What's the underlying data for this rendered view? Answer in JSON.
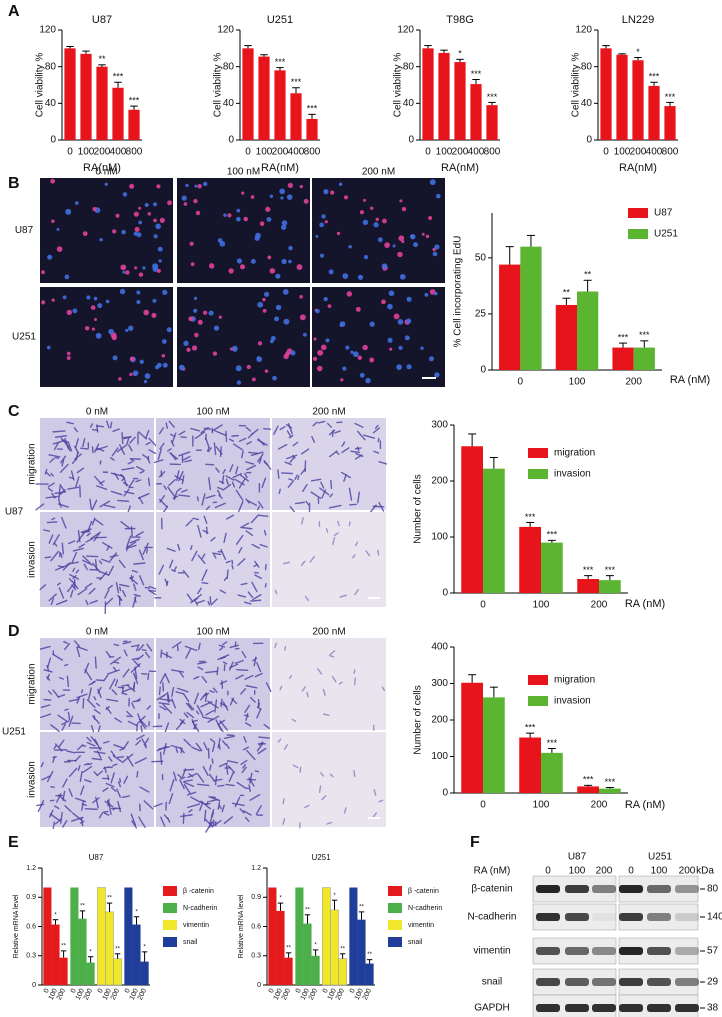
{
  "chart_data": [
    {
      "type": "bar",
      "title": "U87",
      "categories": [
        "0",
        "100",
        "200",
        "400",
        "800"
      ],
      "values": [
        100,
        94,
        80,
        57,
        33
      ],
      "errors": [
        2,
        3,
        2,
        6,
        4
      ],
      "annotations": [
        null,
        null,
        "**",
        "***",
        "***"
      ],
      "color": "#e8141b",
      "xlabel": "RA(nM)",
      "ylabel": "Cell viability %",
      "ylim": [
        0,
        120
      ],
      "yticks": [
        0,
        40,
        80,
        120
      ]
    },
    {
      "type": "bar",
      "title": "U251",
      "categories": [
        "0",
        "100",
        "200",
        "400",
        "800"
      ],
      "values": [
        100,
        91,
        76,
        51,
        23
      ],
      "errors": [
        3,
        2,
        3,
        6,
        5
      ],
      "annotations": [
        null,
        null,
        "***",
        "***",
        "***"
      ],
      "color": "#e8141b",
      "xlabel": "RA(nM)",
      "ylabel": "Cell viability %",
      "ylim": [
        0,
        120
      ],
      "yticks": [
        0,
        40,
        80,
        120
      ]
    },
    {
      "type": "bar",
      "title": "T98G",
      "categories": [
        "0",
        "100",
        "200",
        "400",
        "800"
      ],
      "values": [
        100,
        95,
        85,
        61,
        38
      ],
      "errors": [
        3,
        3,
        3,
        5,
        3
      ],
      "annotations": [
        null,
        null,
        "*",
        "***",
        "***"
      ],
      "color": "#e8141b",
      "xlabel": "RA(nM)",
      "ylabel": "Cell viability %",
      "ylim": [
        0,
        120
      ],
      "yticks": [
        0,
        40,
        80,
        120
      ]
    },
    {
      "type": "bar",
      "title": "LN229",
      "categories": [
        "0",
        "100",
        "200",
        "400",
        "800"
      ],
      "values": [
        100,
        93,
        87,
        59,
        37
      ],
      "errors": [
        3,
        1,
        3,
        4,
        4
      ],
      "annotations": [
        null,
        null,
        "*",
        "***",
        "***"
      ],
      "color": "#e8141b",
      "xlabel": "RA(nM)",
      "ylabel": "Cell viability %",
      "ylim": [
        0,
        120
      ],
      "yticks": [
        0,
        40,
        80,
        120
      ]
    },
    {
      "type": "bar",
      "categories": [
        "0",
        "100",
        "200"
      ],
      "xlabel": "RA (nM)",
      "ylabel": "% Cell incorporating EdU",
      "ylim": [
        0,
        70
      ],
      "yticks": [
        0,
        25,
        50
      ],
      "legend": "top-right",
      "series": [
        {
          "name": "U87",
          "color": "#e8141b",
          "values": [
            47,
            29,
            10
          ],
          "errors": [
            8,
            3,
            2
          ],
          "annotations": [
            null,
            "**",
            "***"
          ]
        },
        {
          "name": "U251",
          "color": "#5cb531",
          "values": [
            55,
            35,
            10
          ],
          "errors": [
            5,
            5,
            3
          ],
          "annotations": [
            null,
            "**",
            "***"
          ]
        }
      ]
    },
    {
      "type": "bar",
      "categories": [
        "0",
        "100",
        "200"
      ],
      "xlabel": "RA (nM)",
      "ylabel": "Number of cells",
      "ylim": [
        0,
        300
      ],
      "yticks": [
        0,
        100,
        200,
        300
      ],
      "legend": "top-right",
      "series": [
        {
          "name": "migration",
          "color": "#e8141b",
          "values": [
            262,
            118,
            25
          ],
          "errors": [
            22,
            8,
            6
          ],
          "annotations": [
            null,
            "***",
            "***"
          ]
        },
        {
          "name": "invasion",
          "color": "#5cb531",
          "values": [
            222,
            90,
            23
          ],
          "errors": [
            20,
            4,
            8
          ],
          "annotations": [
            null,
            "***",
            "***"
          ]
        }
      ]
    },
    {
      "type": "bar",
      "categories": [
        "0",
        "100",
        "200"
      ],
      "xlabel": "RA (nM)",
      "ylabel": "Number of cells",
      "ylim": [
        0,
        400
      ],
      "yticks": [
        0,
        100,
        200,
        300,
        400
      ],
      "legend": "top-right",
      "series": [
        {
          "name": "migration",
          "color": "#e8141b",
          "values": [
            302,
            152,
            18
          ],
          "errors": [
            22,
            12,
            3
          ],
          "annotations": [
            null,
            "***",
            "***"
          ]
        },
        {
          "name": "invasion",
          "color": "#5cb531",
          "values": [
            262,
            110,
            12
          ],
          "errors": [
            28,
            12,
            3
          ],
          "annotations": [
            null,
            "***",
            "***"
          ]
        }
      ]
    },
    {
      "type": "bar",
      "group_by": "series",
      "title": "U87",
      "categories": [
        "0",
        "100",
        "200"
      ],
      "ylabel": "Relative mRNA level",
      "ylim": [
        0,
        1.2
      ],
      "yticks": [
        0,
        0.3,
        0.6,
        0.9,
        1.2
      ],
      "legend": "right",
      "series": [
        {
          "name": "β -catenin",
          "color": "#e41a1c",
          "values": [
            1,
            0.62,
            0.28
          ],
          "errors": [
            null,
            0.05,
            0.07
          ],
          "annotations": [
            null,
            "*",
            "**"
          ]
        },
        {
          "name": "N-cadherin",
          "color": "#4daf4a",
          "values": [
            1,
            0.68,
            0.23
          ],
          "errors": [
            null,
            0.08,
            0.06
          ],
          "annotations": [
            null,
            "**",
            "*"
          ]
        },
        {
          "name": "vimentin",
          "color": "#f0e62a",
          "values": [
            1,
            0.75,
            0.27
          ],
          "errors": [
            null,
            0.09,
            0.05
          ],
          "annotations": [
            null,
            "**",
            "**"
          ]
        },
        {
          "name": "snail",
          "color": "#1f3d99",
          "values": [
            1,
            0.62,
            0.24
          ],
          "errors": [
            null,
            0.08,
            0.1
          ],
          "annotations": [
            null,
            "*",
            "*"
          ]
        }
      ]
    },
    {
      "type": "bar",
      "group_by": "series",
      "title": "U251",
      "categories": [
        "0",
        "100",
        "200"
      ],
      "ylabel": "Relative mRNA level",
      "ylim": [
        0,
        1.2
      ],
      "yticks": [
        0,
        0.3,
        0.6,
        0.9,
        1.2
      ],
      "legend": "right",
      "series": [
        {
          "name": "β -catenin",
          "color": "#e41a1c",
          "values": [
            1,
            0.76,
            0.28
          ],
          "errors": [
            null,
            0.08,
            0.05
          ],
          "annotations": [
            null,
            "*",
            "**"
          ]
        },
        {
          "name": "N-cadherin",
          "color": "#4daf4a",
          "values": [
            1,
            0.63,
            0.3
          ],
          "errors": [
            null,
            0.09,
            0.06
          ],
          "annotations": [
            null,
            "**",
            "*"
          ]
        },
        {
          "name": "vimentin",
          "color": "#f0e62a",
          "values": [
            1,
            0.77,
            0.27
          ],
          "errors": [
            null,
            0.1,
            0.05
          ],
          "annotations": [
            null,
            "*",
            "**"
          ]
        },
        {
          "name": "snail",
          "color": "#1f3d99",
          "values": [
            1,
            0.67,
            0.22
          ],
          "errors": [
            null,
            0.08,
            0.04
          ],
          "annotations": [
            null,
            "**",
            "**"
          ]
        }
      ]
    }
  ],
  "figure": {
    "panel_labels": [
      "A",
      "B",
      "C",
      "D",
      "E",
      "F"
    ],
    "edu_images": {
      "columns": [
        "0 nM",
        "100 nM",
        "200 nM"
      ],
      "rows": [
        "U87",
        "U251"
      ]
    },
    "transwell_c": {
      "columns": [
        "0 nM",
        "100 nM",
        "200 nM"
      ],
      "rows": [
        "migration",
        "invasion"
      ],
      "cell_line": "U87"
    },
    "transwell_d": {
      "columns": [
        "0 nM",
        "100 nM",
        "200 nM"
      ],
      "rows": [
        "migration",
        "invasion"
      ],
      "cell_line": "U251"
    },
    "western_blot": {
      "treatment_label": "RA (nM)",
      "groups": [
        "U87",
        "U251"
      ],
      "lanes": [
        "0",
        "100",
        "200",
        "0",
        "100",
        "200"
      ],
      "unit": "kDa",
      "proteins": [
        {
          "name": "β-catenin",
          "kda": 80
        },
        {
          "name": "N-cadherin",
          "kda": 140
        },
        {
          "name": "vimentin",
          "kda": 57
        },
        {
          "name": "snail",
          "kda": 29
        },
        {
          "name": "GAPDH",
          "kda": 38
        }
      ]
    }
  }
}
